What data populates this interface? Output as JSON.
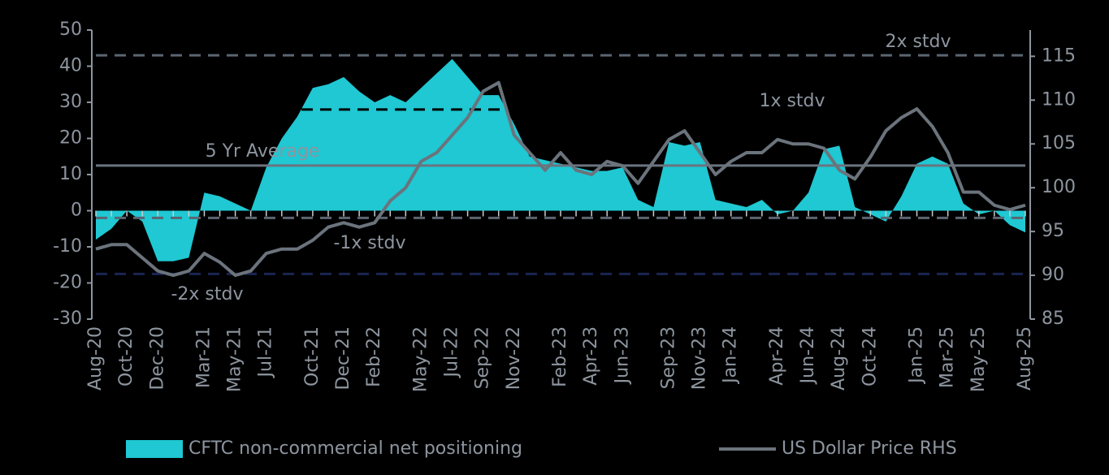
{
  "chart_data": {
    "type": "area-line",
    "categories": [
      "Aug-20",
      null,
      "Oct-20",
      null,
      "Dec-20",
      null,
      null,
      "Mar-21",
      null,
      "May-21",
      null,
      "Jul-21",
      null,
      null,
      "Oct-21",
      null,
      "Dec-21",
      null,
      "Feb-22",
      null,
      null,
      "May-22",
      null,
      "Jul-22",
      null,
      "Sep-22",
      null,
      "Nov-22",
      null,
      null,
      "Feb-23",
      null,
      "Apr-23",
      null,
      "Jun-23",
      null,
      null,
      "Sep-23",
      null,
      "Nov-23",
      null,
      "Jan-24",
      null,
      null,
      "Apr-24",
      null,
      "Jun-24",
      null,
      "Aug-24",
      null,
      "Oct-24",
      null,
      null,
      "Jan-25",
      null,
      "Mar-25",
      null,
      "May-25",
      null,
      null,
      "Aug-25"
    ],
    "series": [
      {
        "name": "CFTC non-commercial net positioning",
        "color": "#1fc8d2",
        "kind": "area",
        "values": [
          -8,
          -5,
          0,
          -3,
          -14,
          -14,
          -13,
          5,
          4,
          2,
          0,
          12,
          20,
          26,
          34,
          35,
          37,
          33,
          30,
          32,
          30,
          34,
          38,
          42,
          37,
          32,
          32,
          24,
          15,
          14,
          13,
          12,
          11,
          11,
          12,
          3,
          1,
          19,
          18,
          19,
          3,
          2,
          1,
          3,
          -1,
          0,
          5,
          17,
          18,
          1,
          -1,
          -3,
          4,
          13,
          15,
          13,
          2,
          -1,
          0,
          -4,
          -6
        ]
      },
      {
        "name": "US Dollar Price RHS",
        "color": "#6b737c",
        "kind": "line",
        "axis": "y2",
        "values": [
          93,
          93.5,
          93.5,
          92,
          90.5,
          90,
          90.5,
          92.5,
          91.5,
          90,
          90.5,
          92.5,
          93,
          93,
          94,
          95.5,
          96,
          95.5,
          96,
          98.5,
          100,
          103,
          104,
          106,
          108,
          111,
          112,
          106,
          104,
          102,
          104,
          102,
          101.5,
          103,
          102.5,
          100.5,
          103,
          105.5,
          106.5,
          104,
          101.5,
          103,
          104,
          104,
          105.5,
          105,
          105,
          104.5,
          102,
          101,
          103.5,
          106.5,
          108,
          109,
          107,
          104,
          99.5,
          99.5,
          98,
          97.5,
          98
        ]
      }
    ],
    "reference_lines": [
      {
        "label": "2x stdv",
        "value": 43,
        "color": "#5b6571",
        "dash": true
      },
      {
        "label": "1x stdv",
        "value": 28,
        "color": "#000000",
        "dash": true
      },
      {
        "label": "5 Yr Average",
        "value": 12.5,
        "color": "#6b7480",
        "dash": false
      },
      {
        "label": "-1x stdv",
        "value": -2,
        "color": "#5b6571",
        "dash": true
      },
      {
        "label": "-2x stdv",
        "value": -17.5,
        "color": "#1a2552",
        "dash": true
      }
    ],
    "ylim": [
      -30,
      50
    ],
    "yticks": [
      -30,
      -20,
      -10,
      0,
      10,
      20,
      30,
      40,
      50
    ],
    "y2lim": [
      85,
      118
    ],
    "y2ticks": [
      85,
      90,
      95,
      100,
      105,
      110,
      115
    ],
    "legend": "bottom"
  }
}
